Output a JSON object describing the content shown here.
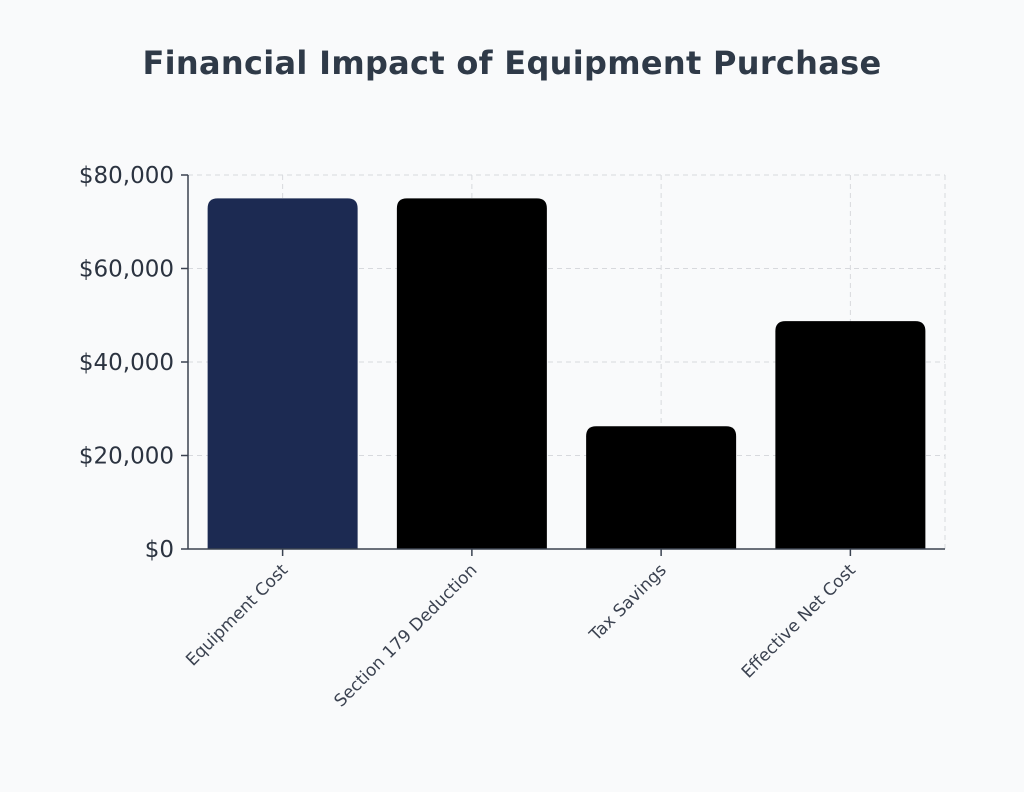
{
  "chart_data": {
    "type": "bar",
    "title": "Financial Impact of Equipment Purchase",
    "xlabel": "",
    "ylabel": "",
    "categories": [
      "Equipment Cost",
      "Section 179 Deduction",
      "Tax Savings",
      "Effective Net Cost"
    ],
    "values": [
      75000,
      75000,
      26250,
      48750
    ],
    "colors": [
      "#1c2a52",
      "#000000",
      "#000000",
      "#000000"
    ],
    "ylim": [
      0,
      80000
    ],
    "yticks": [
      0,
      20000,
      40000,
      60000,
      80000
    ],
    "ytick_labels": [
      "$0",
      "$20,000",
      "$40,000",
      "$60,000",
      "$80,000"
    ],
    "grid": true,
    "legend": "none"
  }
}
